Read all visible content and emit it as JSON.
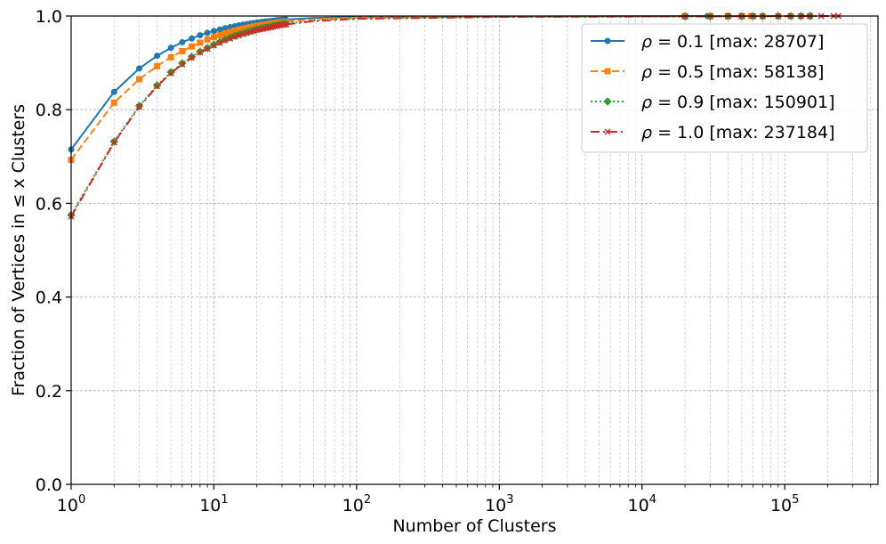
{
  "chart_data": {
    "type": "line",
    "xlabel": "Number of Clusters",
    "ylabel": "Fraction of Vertices in ≤ x Clusters",
    "xscale": "log",
    "xlim": [
      1,
      450000
    ],
    "ylim": [
      0.0,
      1.0
    ],
    "x_ticks": [
      {
        "value": 1,
        "base": "10",
        "exp": "0"
      },
      {
        "value": 10,
        "base": "10",
        "exp": "1"
      },
      {
        "value": 100,
        "base": "10",
        "exp": "2"
      },
      {
        "value": 1000,
        "base": "10",
        "exp": "3"
      },
      {
        "value": 10000,
        "base": "10",
        "exp": "4"
      },
      {
        "value": 100000,
        "base": "10",
        "exp": "5"
      }
    ],
    "y_ticks": [
      {
        "value": 0.0,
        "label": "0.0"
      },
      {
        "value": 0.2,
        "label": "0.2"
      },
      {
        "value": 0.4,
        "label": "0.4"
      },
      {
        "value": 0.6,
        "label": "0.6"
      },
      {
        "value": 0.8,
        "label": "0.8"
      },
      {
        "value": 1.0,
        "label": "1.0"
      }
    ],
    "grid": true,
    "legend_position": "top-right",
    "series": [
      {
        "name": "ρ = 0.1 [max: 28707]",
        "rho": "0.1",
        "max": "28707",
        "color": "#1f77b4",
        "linestyle": "solid",
        "marker": "circle",
        "points": [
          [
            1,
            0.715
          ],
          [
            2,
            0.838
          ],
          [
            3,
            0.888
          ],
          [
            4,
            0.915
          ],
          [
            5,
            0.932
          ],
          [
            6,
            0.944
          ],
          [
            7,
            0.952
          ],
          [
            8,
            0.959
          ],
          [
            9,
            0.964
          ],
          [
            10,
            0.968
          ],
          [
            12,
            0.974
          ],
          [
            15,
            0.98
          ],
          [
            20,
            0.986
          ],
          [
            30,
            0.992
          ],
          [
            50,
            0.996
          ],
          [
            100,
            0.998
          ],
          [
            1000,
            0.999
          ],
          [
            28707,
            1.0
          ]
        ]
      },
      {
        "name": "ρ = 0.5 [max: 58138]",
        "rho": "0.5",
        "max": "58138",
        "color": "#ff7f0e",
        "linestyle": "dashed",
        "marker": "square",
        "points": [
          [
            1,
            0.693
          ],
          [
            2,
            0.815
          ],
          [
            3,
            0.865
          ],
          [
            4,
            0.893
          ],
          [
            5,
            0.912
          ],
          [
            6,
            0.925
          ],
          [
            7,
            0.935
          ],
          [
            8,
            0.943
          ],
          [
            9,
            0.95
          ],
          [
            10,
            0.955
          ],
          [
            12,
            0.963
          ],
          [
            15,
            0.971
          ],
          [
            20,
            0.979
          ],
          [
            30,
            0.987
          ],
          [
            50,
            0.993
          ],
          [
            100,
            0.997
          ],
          [
            1000,
            0.999
          ],
          [
            58138,
            1.0
          ]
        ]
      },
      {
        "name": "ρ = 0.9 [max: 150901]",
        "rho": "0.9",
        "max": "150901",
        "color": "#2ca02c",
        "linestyle": "dotted",
        "marker": "diamond",
        "points": [
          [
            1,
            0.575
          ],
          [
            2,
            0.732
          ],
          [
            3,
            0.808
          ],
          [
            4,
            0.852
          ],
          [
            5,
            0.88
          ],
          [
            6,
            0.899
          ],
          [
            7,
            0.913
          ],
          [
            8,
            0.924
          ],
          [
            9,
            0.932
          ],
          [
            10,
            0.939
          ],
          [
            12,
            0.95
          ],
          [
            15,
            0.961
          ],
          [
            20,
            0.972
          ],
          [
            30,
            0.983
          ],
          [
            50,
            0.99
          ],
          [
            100,
            0.995
          ],
          [
            1000,
            0.998
          ],
          [
            10000,
            0.999
          ],
          [
            150901,
            1.0
          ]
        ]
      },
      {
        "name": "ρ = 1.0 [max: 237184]",
        "rho": "1.0",
        "max": "237184",
        "color": "#d62728",
        "linestyle": "dashdot",
        "marker": "x",
        "points": [
          [
            1,
            0.572
          ],
          [
            2,
            0.73
          ],
          [
            3,
            0.806
          ],
          [
            4,
            0.85
          ],
          [
            5,
            0.878
          ],
          [
            6,
            0.897
          ],
          [
            7,
            0.911
          ],
          [
            8,
            0.922
          ],
          [
            9,
            0.93
          ],
          [
            10,
            0.937
          ],
          [
            12,
            0.948
          ],
          [
            15,
            0.959
          ],
          [
            20,
            0.97
          ],
          [
            30,
            0.981
          ],
          [
            50,
            0.989
          ],
          [
            100,
            0.994
          ],
          [
            1000,
            0.998
          ],
          [
            10000,
            0.999
          ],
          [
            237184,
            1.0
          ]
        ]
      }
    ]
  }
}
